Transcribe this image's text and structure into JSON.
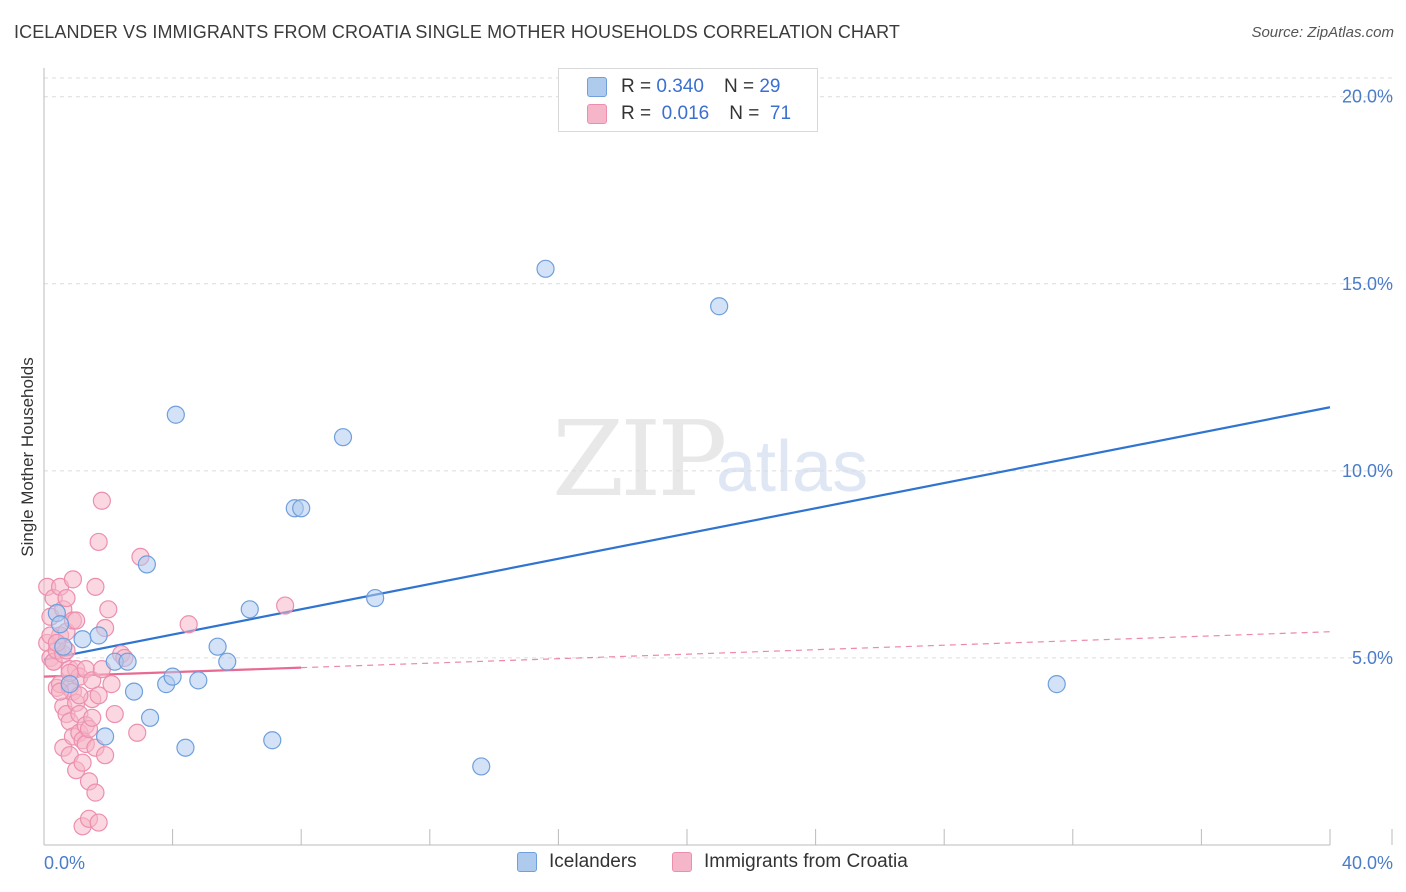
{
  "title": "ICELANDER VS IMMIGRANTS FROM CROATIA SINGLE MOTHER HOUSEHOLDS CORRELATION CHART",
  "source": "Source: ZipAtlas.com",
  "watermark": {
    "zip": "ZIP",
    "atlas": "atlas"
  },
  "legend_top": {
    "r_label": "R =",
    "n_label": "N =",
    "rows": [
      {
        "r": "0.340",
        "n": "29"
      },
      {
        "r": "0.016",
        "n": "71"
      }
    ]
  },
  "colors": {
    "blue_fill": "#aecbee",
    "blue_stroke": "#6f9fdc",
    "blue_line": "#2f74d0",
    "pink_fill": "#f5b6c9",
    "pink_stroke": "#ec8fae",
    "pink_line": "#e86a92",
    "grid": "#dcdcdc",
    "tick_text": "#4a7cc9"
  },
  "chart_data": {
    "type": "scatter",
    "title": "ICELANDER VS IMMIGRANTS FROM CROATIA SINGLE MOTHER HOUSEHOLDS CORRELATION CHART",
    "xlabel": "",
    "ylabel": "Single Mother Households",
    "xlim": [
      0,
      40
    ],
    "ylim": [
      0,
      20.5
    ],
    "x_tick_labels": [
      "0.0%",
      "40.0%"
    ],
    "y_ticks": [
      5,
      10,
      15,
      20
    ],
    "y_tick_labels": [
      "5.0%",
      "10.0%",
      "15.0%",
      "20.0%"
    ],
    "series": [
      {
        "name": "Icelanders",
        "r": 0.34,
        "n": 29,
        "trend": {
          "x": [
            0,
            40
          ],
          "y": [
            4.95,
            11.7
          ],
          "style": "solid"
        },
        "points": [
          [
            0.4,
            6.2
          ],
          [
            0.6,
            5.3
          ],
          [
            0.8,
            4.3
          ],
          [
            1.2,
            5.5
          ],
          [
            1.7,
            5.6
          ],
          [
            1.9,
            2.9
          ],
          [
            2.2,
            4.9
          ],
          [
            2.6,
            4.9
          ],
          [
            2.8,
            4.1
          ],
          [
            3.2,
            7.5
          ],
          [
            3.3,
            3.4
          ],
          [
            3.8,
            4.3
          ],
          [
            4.0,
            4.5
          ],
          [
            4.1,
            11.5
          ],
          [
            4.4,
            2.6
          ],
          [
            4.8,
            4.4
          ],
          [
            5.4,
            5.3
          ],
          [
            5.7,
            4.9
          ],
          [
            6.4,
            6.3
          ],
          [
            7.1,
            2.8
          ],
          [
            7.8,
            9.0
          ],
          [
            8.0,
            9.0
          ],
          [
            9.3,
            10.9
          ],
          [
            10.3,
            6.6
          ],
          [
            13.6,
            2.1
          ],
          [
            15.6,
            15.4
          ],
          [
            21.0,
            14.4
          ],
          [
            31.5,
            4.3
          ],
          [
            0.5,
            5.9
          ]
        ]
      },
      {
        "name": "Immigrants from Croatia",
        "r": 0.016,
        "n": 71,
        "trend": {
          "x": [
            0,
            40
          ],
          "y": [
            4.5,
            5.7
          ],
          "solid_until": 8,
          "style": "solid-then-dashed"
        },
        "points": [
          [
            0.1,
            6.9
          ],
          [
            0.1,
            5.4
          ],
          [
            0.2,
            5.0
          ],
          [
            0.2,
            6.1
          ],
          [
            0.3,
            4.9
          ],
          [
            0.3,
            6.6
          ],
          [
            0.3,
            4.9
          ],
          [
            0.4,
            5.2
          ],
          [
            0.4,
            4.2
          ],
          [
            0.5,
            6.9
          ],
          [
            0.5,
            5.6
          ],
          [
            0.5,
            4.3
          ],
          [
            0.6,
            6.3
          ],
          [
            0.6,
            5.1
          ],
          [
            0.6,
            3.7
          ],
          [
            0.6,
            2.6
          ],
          [
            0.7,
            6.6
          ],
          [
            0.7,
            5.7
          ],
          [
            0.7,
            5.2
          ],
          [
            0.7,
            3.5
          ],
          [
            0.8,
            4.7
          ],
          [
            0.8,
            4.2
          ],
          [
            0.8,
            3.3
          ],
          [
            0.8,
            2.4
          ],
          [
            0.9,
            7.1
          ],
          [
            0.9,
            6.0
          ],
          [
            0.9,
            4.1
          ],
          [
            0.9,
            2.9
          ],
          [
            1.0,
            4.7
          ],
          [
            1.0,
            3.8
          ],
          [
            1.0,
            2.0
          ],
          [
            1.1,
            4.5
          ],
          [
            1.1,
            3.5
          ],
          [
            1.1,
            3.0
          ],
          [
            1.2,
            2.8
          ],
          [
            1.2,
            2.2
          ],
          [
            1.2,
            0.5
          ],
          [
            1.3,
            4.7
          ],
          [
            1.3,
            3.2
          ],
          [
            1.3,
            2.7
          ],
          [
            1.4,
            3.1
          ],
          [
            1.4,
            1.7
          ],
          [
            1.4,
            0.7
          ],
          [
            1.5,
            4.4
          ],
          [
            1.5,
            3.9
          ],
          [
            1.6,
            2.6
          ],
          [
            1.6,
            6.9
          ],
          [
            1.6,
            1.4
          ],
          [
            1.7,
            8.1
          ],
          [
            1.7,
            4.0
          ],
          [
            1.7,
            0.6
          ],
          [
            1.8,
            9.2
          ],
          [
            1.8,
            4.7
          ],
          [
            1.9,
            2.4
          ],
          [
            1.9,
            5.8
          ],
          [
            2.0,
            6.3
          ],
          [
            2.1,
            4.3
          ],
          [
            2.2,
            3.5
          ],
          [
            2.4,
            5.1
          ],
          [
            2.5,
            5.0
          ],
          [
            2.9,
            3.0
          ],
          [
            3.0,
            7.7
          ],
          [
            4.5,
            5.9
          ],
          [
            7.5,
            6.4
          ],
          [
            1.0,
            6.0
          ],
          [
            0.2,
            5.6
          ],
          [
            0.4,
            5.4
          ],
          [
            1.1,
            4.0
          ],
          [
            1.5,
            3.4
          ],
          [
            0.5,
            4.1
          ],
          [
            0.8,
            4.6
          ]
        ]
      }
    ],
    "legend": {
      "position": "bottom-center",
      "entries": [
        "Icelanders",
        "Immigrants from Croatia"
      ]
    }
  }
}
